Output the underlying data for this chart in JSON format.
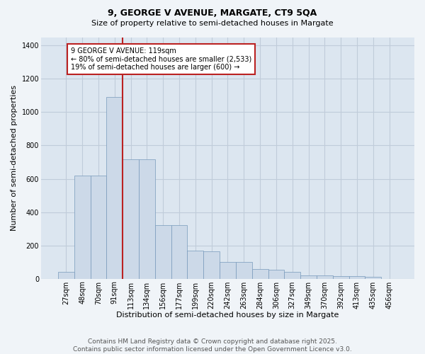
{
  "title1": "9, GEORGE V AVENUE, MARGATE, CT9 5QA",
  "title2": "Size of property relative to semi-detached houses in Margate",
  "xlabel": "Distribution of semi-detached houses by size in Margate",
  "ylabel": "Number of semi-detached properties",
  "categories": [
    "27sqm",
    "48sqm",
    "70sqm",
    "91sqm",
    "113sqm",
    "134sqm",
    "156sqm",
    "177sqm",
    "199sqm",
    "220sqm",
    "242sqm",
    "263sqm",
    "284sqm",
    "306sqm",
    "327sqm",
    "349sqm",
    "370sqm",
    "392sqm",
    "413sqm",
    "435sqm",
    "456sqm"
  ],
  "values": [
    40,
    620,
    620,
    1090,
    715,
    715,
    320,
    320,
    170,
    165,
    100,
    100,
    60,
    55,
    40,
    20,
    20,
    15,
    15,
    10,
    0
  ],
  "bar_color": "#ccd9e8",
  "bar_edge_color": "#7799bb",
  "vline_color": "#bb2222",
  "vline_index": 4,
  "annotation_line1": "9 GEORGE V AVENUE: 119sqm",
  "annotation_line2": "← 80% of semi-detached houses are smaller (2,533)",
  "annotation_line3": "19% of semi-detached houses are larger (600) →",
  "annotation_box_facecolor": "#ffffff",
  "annotation_box_edgecolor": "#bb2222",
  "ylim": [
    0,
    1450
  ],
  "yticks": [
    0,
    200,
    400,
    600,
    800,
    1000,
    1200,
    1400
  ],
  "bg_color": "#f0f4f8",
  "plot_bg_color": "#dce6f0",
  "footer1": "Contains HM Land Registry data © Crown copyright and database right 2025.",
  "footer2": "Contains public sector information licensed under the Open Government Licence v3.0.",
  "grid_color": "#c0ccda",
  "title1_fontsize": 9,
  "title2_fontsize": 8,
  "ylabel_fontsize": 8,
  "xlabel_fontsize": 8,
  "tick_fontsize": 7,
  "footer_fontsize": 6.5
}
